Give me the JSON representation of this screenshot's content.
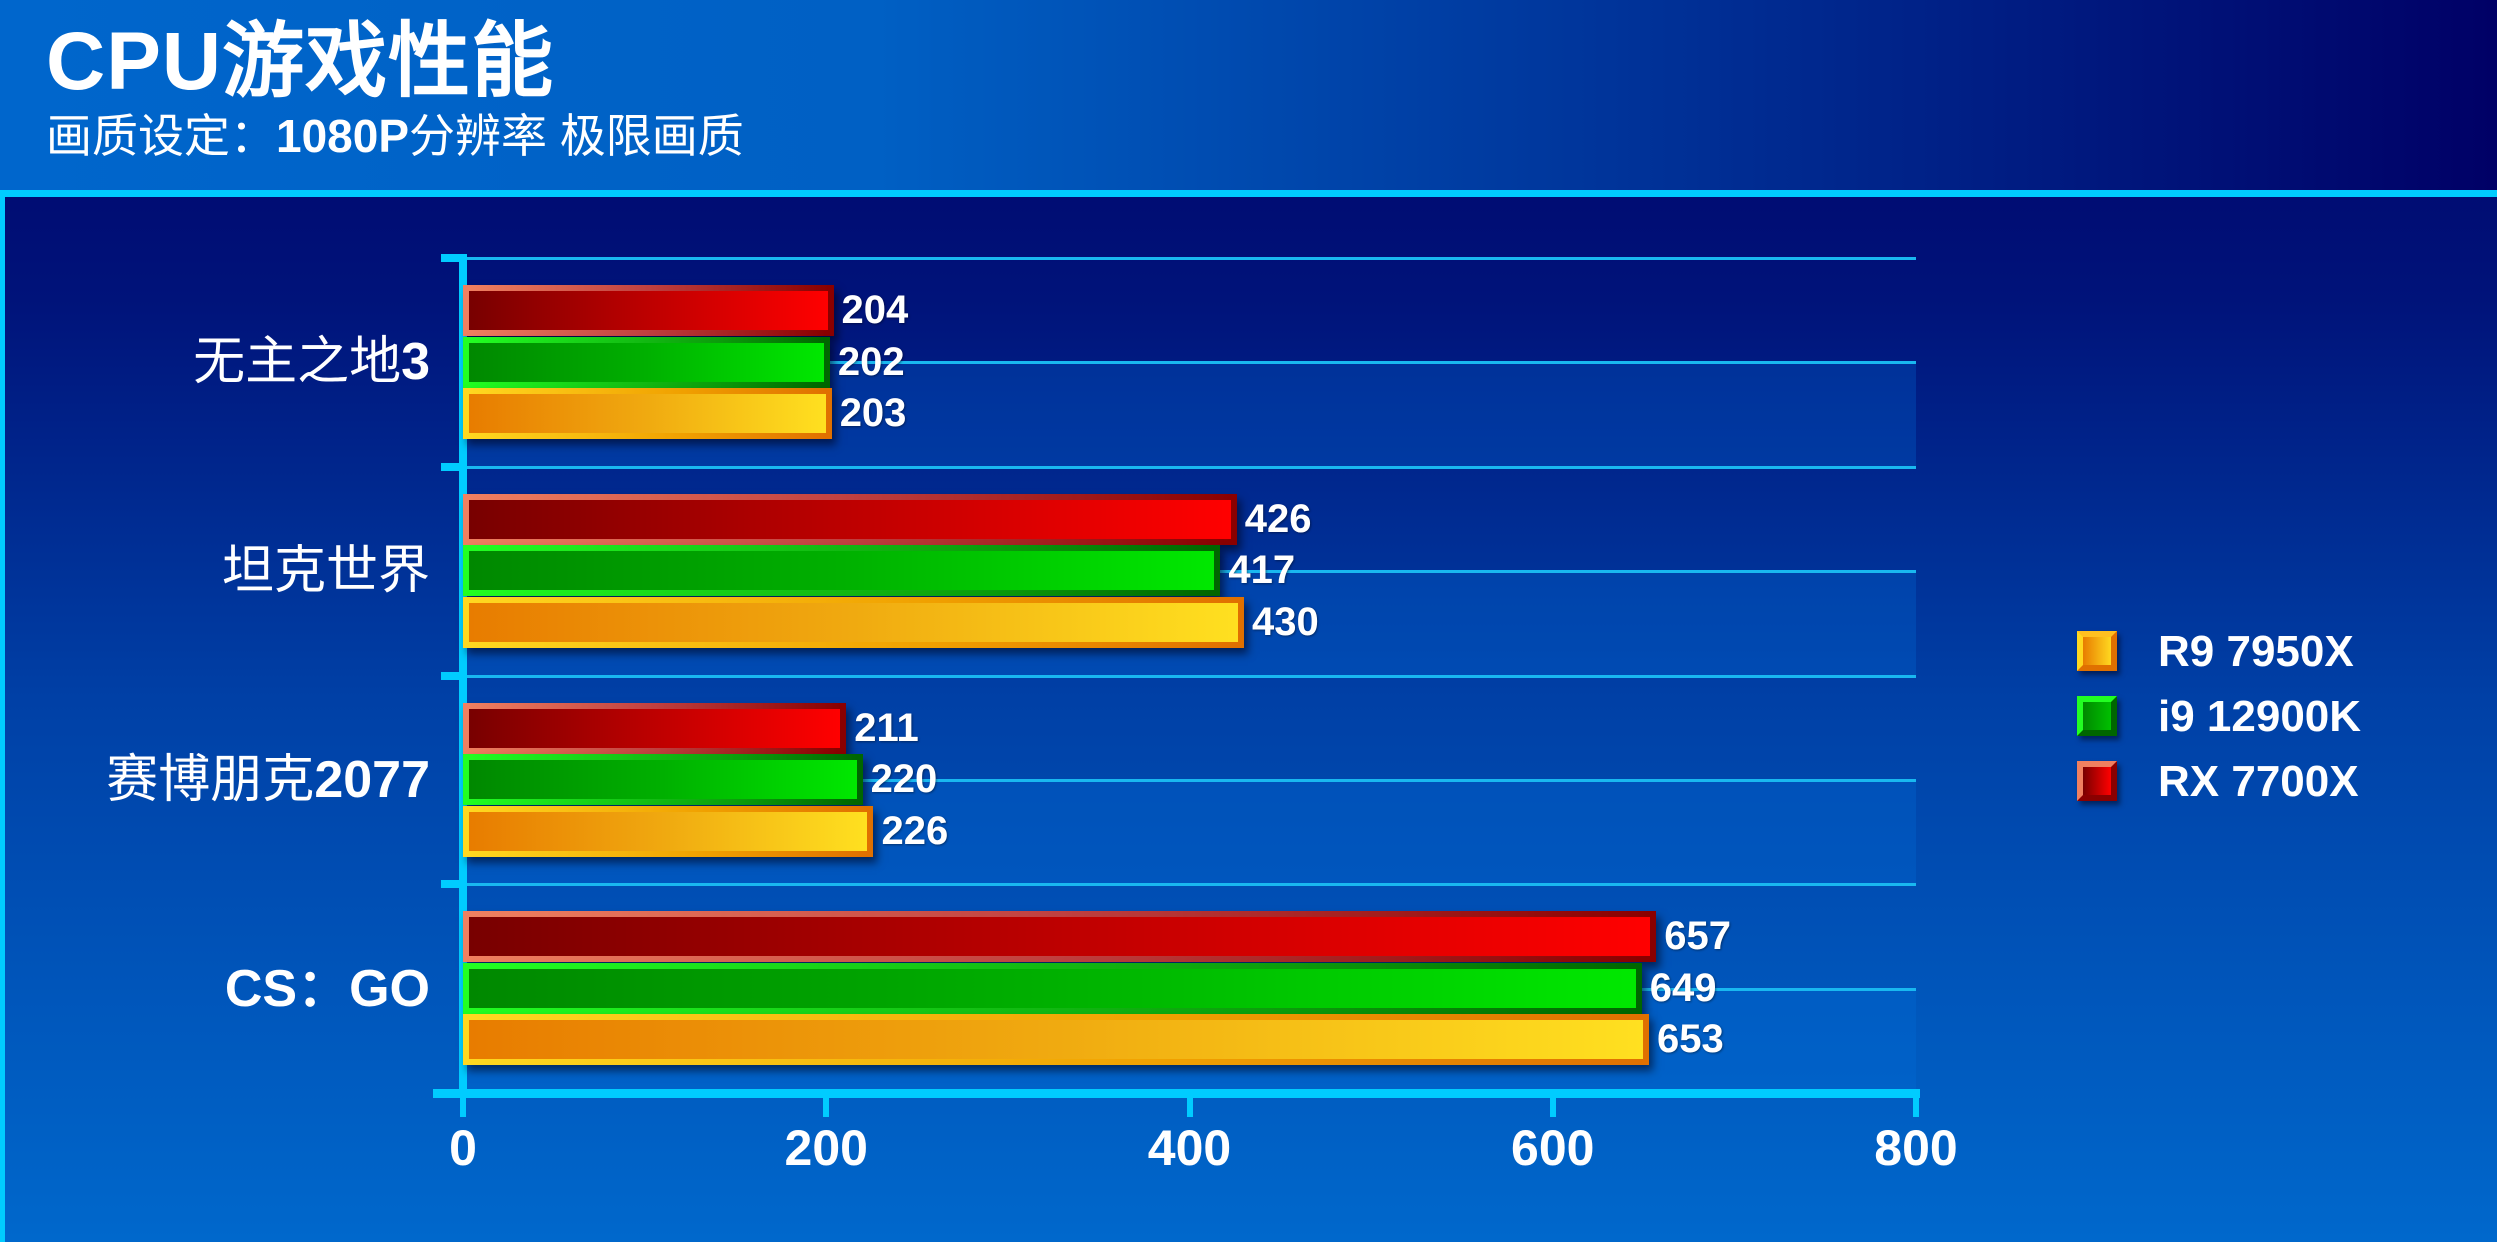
{
  "header": {
    "title": "CPU游戏性能",
    "subtitle_prefix": "画质设定：",
    "subtitle_bold": "1080P",
    "subtitle_suffix": "分辨率 极限画质"
  },
  "legend": {
    "items": [
      {
        "label": "R9 7950X",
        "color": "orange"
      },
      {
        "label": "i9 12900K",
        "color": "green"
      },
      {
        "label": "RX 7700X",
        "color": "red"
      }
    ]
  },
  "colors": {
    "header_left": "#0066CC",
    "header_right": "#000066",
    "accent_cyan": "#00CCFF",
    "red_series": "#FF0000",
    "green_series": "#00E800",
    "orange_series": "#F0AA10"
  },
  "axis": {
    "x_ticks": [
      "0",
      "200",
      "400",
      "600",
      "800"
    ]
  },
  "categories": [
    {
      "name": "无主之地",
      "suffix": "3",
      "values": {
        "red": "204",
        "green": "202",
        "orange": "203"
      }
    },
    {
      "name": "坦克世界",
      "suffix": "",
      "values": {
        "red": "426",
        "green": "417",
        "orange": "430"
      }
    },
    {
      "name": "赛博朋克",
      "suffix": "2077",
      "values": {
        "red": "211",
        "green": "220",
        "orange": "226"
      }
    },
    {
      "name": "",
      "suffix": "CS：GO",
      "values": {
        "red": "657",
        "green": "649",
        "orange": "653"
      }
    }
  ],
  "chart_data": {
    "type": "bar",
    "orientation": "horizontal",
    "title": "CPU游戏性能",
    "subtitle": "画质设定：1080P分辨率 极限画质",
    "categories": [
      "无主之地3",
      "坦克世界",
      "赛博朋克2077",
      "CS：GO"
    ],
    "series": [
      {
        "name": "RX 7700X",
        "color": "#FF0000",
        "values": [
          204,
          426,
          211,
          657
        ]
      },
      {
        "name": "i9 12900K",
        "color": "#00E800",
        "values": [
          202,
          417,
          220,
          649
        ]
      },
      {
        "name": "R9 7950X",
        "color": "#F0AA10",
        "values": [
          203,
          430,
          226,
          653
        ]
      }
    ],
    "xlabel": "",
    "ylabel": "",
    "xlim": [
      0,
      800
    ],
    "x_ticks": [
      0,
      200,
      400,
      600,
      800
    ],
    "grid": true,
    "data_labels": true,
    "legend_position": "right",
    "legend_order": [
      "R9 7950X",
      "i9 12900K",
      "RX 7700X"
    ]
  }
}
